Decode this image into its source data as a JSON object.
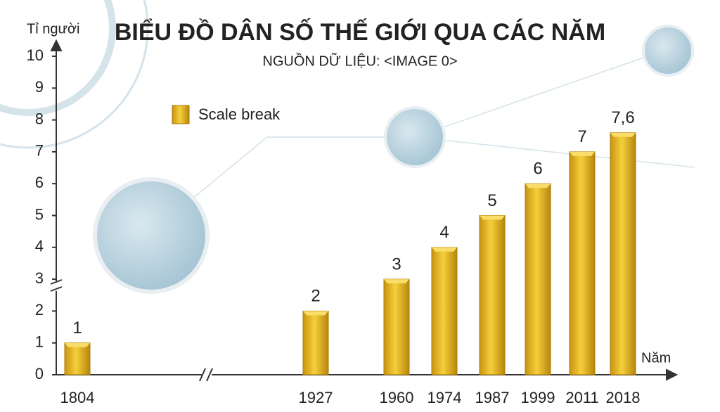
{
  "chart_data": {
    "type": "bar",
    "title": "BIỂU ĐỒ DÂN SỐ THẾ GIỚI QUA CÁC NĂM",
    "subtitle": "NGUỒN DỮ LIỆU: <IMAGE 0>",
    "y_label": "Tỉ người",
    "x_label": "Năm",
    "categories": [
      "1804",
      "1927",
      "1960",
      "1974",
      "1987",
      "1999",
      "2011",
      "2018"
    ],
    "series": [
      {
        "name": "Scale break",
        "color": "#e8b820",
        "values": [
          1,
          2,
          3,
          4,
          5,
          6,
          7,
          7.6
        ],
        "value_labels": [
          "1",
          "2",
          "3",
          "4",
          "5",
          "6",
          "7",
          "7,6"
        ]
      }
    ],
    "ylim": [
      0,
      10
    ],
    "yticks": [
      0,
      1,
      2,
      3,
      4,
      5,
      6,
      7,
      8,
      9,
      10
    ],
    "legend": "upper left"
  }
}
